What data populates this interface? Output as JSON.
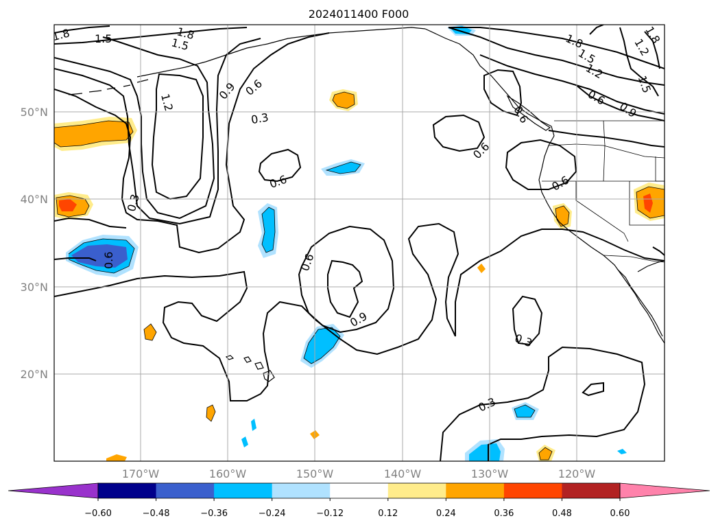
{
  "title": "2024011400 F000",
  "latitude_labels": [
    "50°N",
    "40°N",
    "30°N",
    "20°N"
  ],
  "longitude_labels": [
    "170°W",
    "160°W",
    "150°W",
    "140°W",
    "130°W",
    "120°W"
  ],
  "contour_labels": [
    "1.8",
    "1.5",
    "1.8",
    "1.5",
    "1.2",
    "0.9",
    "0.6",
    "0.3",
    "0.6",
    "0.3",
    "0.6",
    "0.6",
    "0.9",
    "0.6",
    "0.3",
    "0.3",
    "1.8",
    "1.5",
    "1.2",
    "0.6",
    "0.9",
    "1.5",
    "0.6",
    "0.6",
    "1.2",
    "1.8"
  ],
  "colorbar": {
    "ticks": [
      "−0.60",
      "−0.48",
      "−0.36",
      "−0.24",
      "−0.12",
      "0.12",
      "0.24",
      "0.36",
      "0.48",
      "0.60"
    ],
    "colors": [
      "#9932cc",
      "#00008b",
      "#3a5fcd",
      "#00bfff",
      "#b0e2ff",
      "#ffffff",
      "#ffec8b",
      "#ffa500",
      "#ff4500",
      "#b22222",
      "#ff82ab"
    ]
  },
  "fill_colors": {
    "neg_light": "#b0e2ff",
    "neg_mid": "#00bfff",
    "neg_strong": "#3a5fcd",
    "pos_light": "#ffec8b",
    "pos_mid": "#ffa500",
    "pos_strong": "#ff4500"
  }
}
